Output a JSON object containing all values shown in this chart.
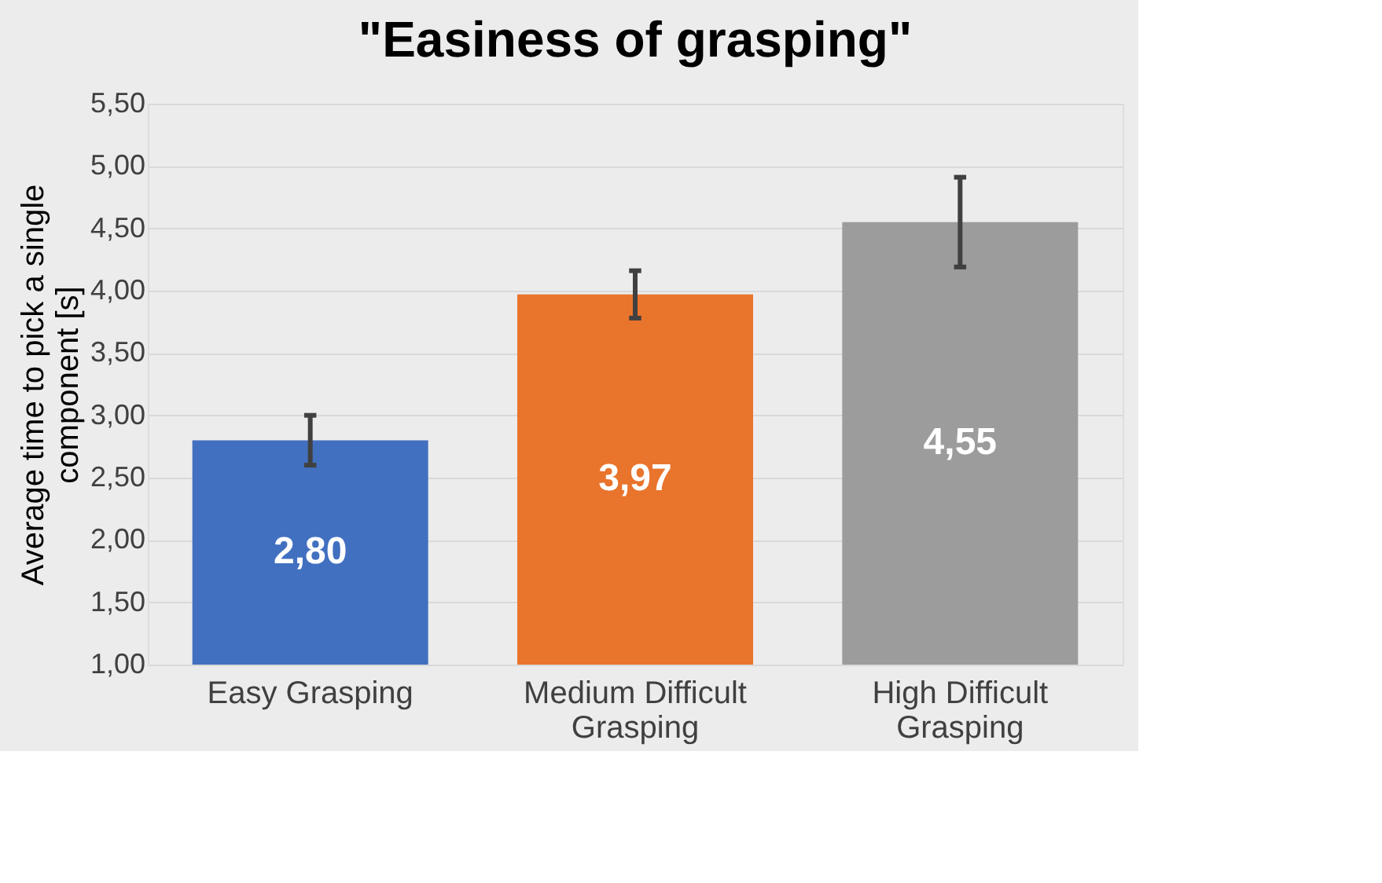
{
  "chart_data": {
    "type": "bar",
    "title": "\"Easiness of grasping\"",
    "ylabel": "Average time to pick a single component [s]",
    "categories": [
      "Easy Grasping",
      "Medium Difficult Grasping",
      "High Difficult Grasping"
    ],
    "values": [
      2.8,
      3.97,
      4.55
    ],
    "colors": [
      "#4270c0",
      "#e9742c",
      "#9c9c9c"
    ],
    "errors": [
      0.2,
      0.19,
      0.36
    ],
    "value_labels": [
      "2,80",
      "3,97",
      "4,55"
    ],
    "ylim": [
      1.0,
      5.5
    ],
    "yticks": [
      {
        "value": 1.0,
        "label": "1,00"
      },
      {
        "value": 1.5,
        "label": "1,50"
      },
      {
        "value": 2.0,
        "label": "2,00"
      },
      {
        "value": 2.5,
        "label": "2,50"
      },
      {
        "value": 3.0,
        "label": "3,00"
      },
      {
        "value": 3.5,
        "label": "3,50"
      },
      {
        "value": 4.0,
        "label": "4,00"
      },
      {
        "value": 4.5,
        "label": "4,50"
      },
      {
        "value": 5.0,
        "label": "5,00"
      },
      {
        "value": 5.5,
        "label": "5,50"
      }
    ],
    "grid": "y"
  }
}
